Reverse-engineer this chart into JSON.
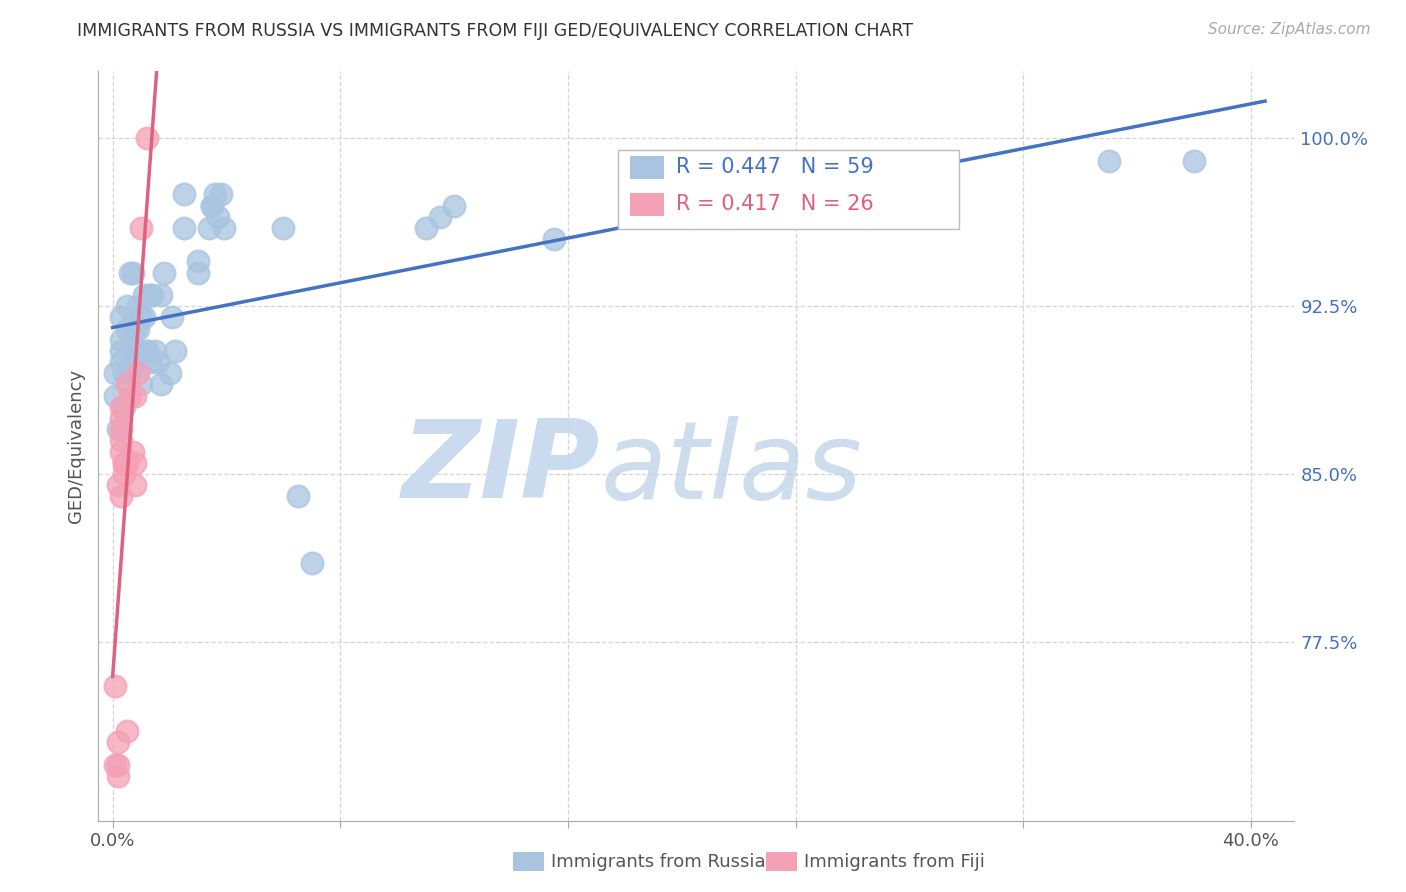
{
  "title": "IMMIGRANTS FROM RUSSIA VS IMMIGRANTS FROM FIJI GED/EQUIVALENCY CORRELATION CHART",
  "source": "Source: ZipAtlas.com",
  "xlabel_russia": "Immigrants from Russia",
  "xlabel_fiji": "Immigrants from Fiji",
  "ylabel": "GED/Equivalency",
  "xlim": [
    -0.005,
    0.415
  ],
  "ylim": [
    0.695,
    1.03
  ],
  "ytick_right": [
    0.775,
    0.85,
    0.925,
    1.0
  ],
  "ytick_right_labels": [
    "77.5%",
    "85.0%",
    "92.5%",
    "100.0%"
  ],
  "legend_russia_r": "R = 0.447",
  "legend_russia_n": "N = 59",
  "legend_fiji_r": "R = 0.417",
  "legend_fiji_n": "N = 26",
  "russia_color": "#a8c4e0",
  "fiji_color": "#f4a0b5",
  "russia_line_color": "#4472c4",
  "fiji_line_color": "#e06080",
  "watermark_zip": "ZIP",
  "watermark_atlas": "atlas",
  "watermark_color_zip": "#c8d8ec",
  "watermark_color_atlas": "#c8d8ec",
  "russia_x": [
    0.001,
    0.001,
    0.002,
    0.003,
    0.003,
    0.003,
    0.003,
    0.004,
    0.004,
    0.005,
    0.005,
    0.006,
    0.006,
    0.007,
    0.007,
    0.008,
    0.008,
    0.009,
    0.009,
    0.009,
    0.01,
    0.01,
    0.011,
    0.011,
    0.012,
    0.012,
    0.013,
    0.013,
    0.014,
    0.015,
    0.016,
    0.017,
    0.017,
    0.018,
    0.02,
    0.021,
    0.022,
    0.025,
    0.025,
    0.03,
    0.03,
    0.034,
    0.035,
    0.035,
    0.036,
    0.037,
    0.038,
    0.039,
    0.06,
    0.065,
    0.07,
    0.11,
    0.115,
    0.12,
    0.155,
    0.185,
    0.22,
    0.35,
    0.38
  ],
  "russia_y": [
    0.885,
    0.895,
    0.87,
    0.9,
    0.905,
    0.91,
    0.92,
    0.895,
    0.88,
    0.925,
    0.915,
    0.895,
    0.94,
    0.905,
    0.94,
    0.9,
    0.915,
    0.905,
    0.915,
    0.925,
    0.92,
    0.89,
    0.92,
    0.93,
    0.905,
    0.905,
    0.93,
    0.9,
    0.93,
    0.905,
    0.9,
    0.93,
    0.89,
    0.94,
    0.895,
    0.92,
    0.905,
    0.96,
    0.975,
    0.945,
    0.94,
    0.96,
    0.97,
    0.97,
    0.975,
    0.965,
    0.975,
    0.96,
    0.96,
    0.84,
    0.81,
    0.96,
    0.965,
    0.97,
    0.955,
    0.975,
    0.985,
    0.99,
    0.99
  ],
  "fiji_x": [
    0.001,
    0.002,
    0.002,
    0.002,
    0.003,
    0.003,
    0.003,
    0.003,
    0.003,
    0.004,
    0.004,
    0.005,
    0.005,
    0.005,
    0.006,
    0.007,
    0.008,
    0.008,
    0.008,
    0.009,
    0.01,
    0.012,
    0.001,
    0.002,
    0.003,
    0.004
  ],
  "fiji_y": [
    0.72,
    0.73,
    0.72,
    0.715,
    0.84,
    0.86,
    0.865,
    0.875,
    0.88,
    0.85,
    0.855,
    0.735,
    0.855,
    0.89,
    0.885,
    0.86,
    0.855,
    0.845,
    0.885,
    0.895,
    0.96,
    1.0,
    0.755,
    0.845,
    0.87,
    0.855
  ]
}
